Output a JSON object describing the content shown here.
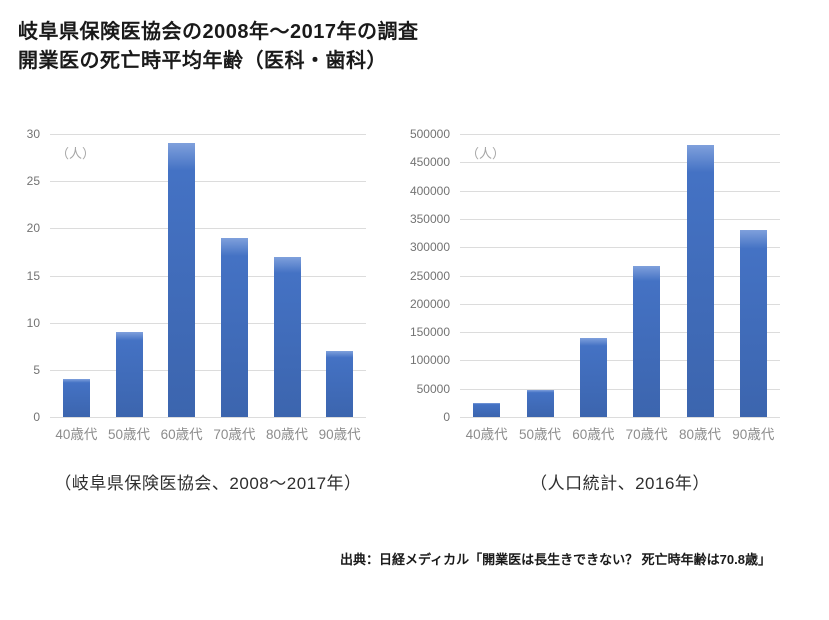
{
  "page": {
    "title_line1": "岐阜県保険医協会の2008年〜2017年の調査",
    "title_line2": "開業医の死亡時平均年齢（医科・歯科）",
    "source": "出典：日経メディカル「開業医は長生きできない？ 死亡時年齢は70.8歳」"
  },
  "colors": {
    "bar": "#4472c4",
    "bar_gradient_top": "#7fa0dc",
    "bar_gradient_bottom": "#3c65ae",
    "gridline": "#dcdcdc",
    "y_tick_label": "#737373",
    "x_tick_label": "#8c8c8c",
    "unit_label": "#a6a6a6",
    "title_text": "#1a1a1a",
    "caption_text": "#2e2e2e"
  },
  "chart_data": [
    {
      "type": "bar",
      "caption": "（岐阜県保険医協会、2008〜2017年）",
      "unit_label": "（人）",
      "categories": [
        "40歳代",
        "50歳代",
        "60歳代",
        "70歳代",
        "80歳代",
        "90歳代"
      ],
      "values": [
        4,
        9,
        29,
        19,
        17,
        7
      ],
      "xlabel": "",
      "ylabel": "（人）",
      "ylim": [
        0,
        30
      ],
      "ytick_step": 5,
      "grid": true,
      "legend": false
    },
    {
      "type": "bar",
      "caption": "（人口統計、2016年）",
      "unit_label": "（人）",
      "categories": [
        "40歳代",
        "50歳代",
        "60歳代",
        "70歳代",
        "80歳代",
        "90歳代"
      ],
      "values": [
        25000,
        47000,
        140000,
        267000,
        480000,
        330000
      ],
      "xlabel": "",
      "ylabel": "（人）",
      "ylim": [
        0,
        500000
      ],
      "ytick_step": 50000,
      "grid": true,
      "legend": false
    }
  ]
}
